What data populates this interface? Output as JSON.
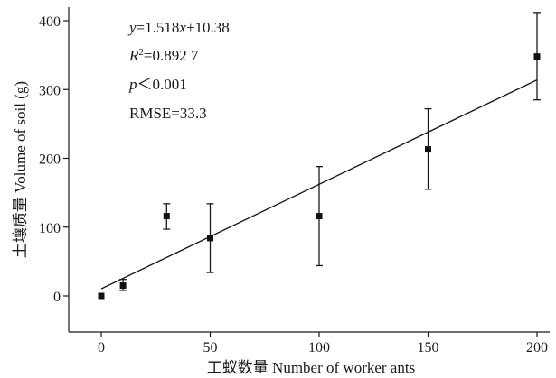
{
  "chart_data": {
    "type": "scatter",
    "xlabel": "工蚁数量 Number of worker ants",
    "ylabel": "土壤质量 Volume of soil (g)",
    "xlim": [
      -15,
      210
    ],
    "ylim": [
      -50,
      425
    ],
    "x_ticks": [
      "0",
      "50",
      "100",
      "150",
      "200"
    ],
    "y_ticks": [
      "0",
      "100",
      "200",
      "300",
      "400"
    ],
    "x": [
      0,
      10,
      30,
      50,
      100,
      150,
      200
    ],
    "y": [
      0,
      15,
      116,
      84,
      116,
      213,
      348
    ],
    "error_low": [
      0,
      8,
      97,
      34,
      44,
      155,
      285
    ],
    "error_high": [
      0,
      24,
      134,
      134,
      188,
      272,
      412
    ],
    "fit": {
      "slope": 1.518,
      "intercept": 10.38,
      "x_range": [
        0,
        200
      ]
    },
    "annotations": {
      "equation": "y=1.518x+10.38",
      "r2": "R²=0.892 7",
      "p": "p＜0.001",
      "rmse": "RMSE=33.3"
    },
    "grid": false,
    "legend": "none",
    "marker": "square",
    "color": "#111111"
  }
}
